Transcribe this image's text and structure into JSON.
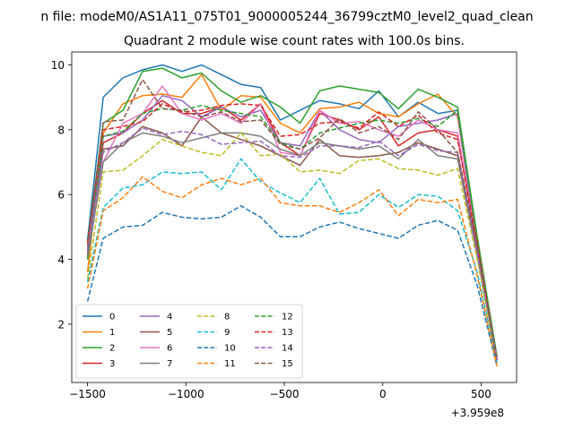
{
  "figure_title": "n file: modeM0/AS1A11_075T01_9000005244_36799cztM0_level2_quad_clean",
  "chart_data": {
    "type": "line",
    "title": "Quadrant 2 module wise count rates with 100.0s bins.",
    "xlabel": "",
    "ylabel": "",
    "x_offset_label": "+3.959e8",
    "xlim": [
      -1580,
      680
    ],
    "ylim": [
      0.2,
      10.4
    ],
    "xticks": [
      -1500,
      -1000,
      -500,
      0,
      500
    ],
    "xtick_labels": [
      "−1500",
      "−1000",
      "−500",
      "0",
      "500"
    ],
    "yticks": [
      2,
      4,
      6,
      8,
      10
    ],
    "ytick_labels": [
      "2",
      "4",
      "6",
      "8",
      "10"
    ],
    "grid": false,
    "legend": {
      "placement": "lower-left",
      "columns": 4
    },
    "x": [
      -1500,
      -1420,
      -1320,
      -1220,
      -1120,
      -1020,
      -920,
      -820,
      -720,
      -620,
      -520,
      -420,
      -320,
      -220,
      -120,
      -20,
      80,
      180,
      280,
      380,
      480,
      580
    ],
    "series": [
      {
        "name": "0",
        "color": "#1f77b4",
        "dash": "solid",
        "values": [
          4.6,
          9.0,
          9.6,
          9.85,
          10.0,
          9.8,
          10.0,
          9.7,
          9.4,
          9.3,
          8.3,
          8.6,
          8.9,
          8.8,
          8.65,
          9.2,
          8.4,
          8.85,
          8.5,
          8.6,
          4.6,
          1.0
        ]
      },
      {
        "name": "1",
        "color": "#ff7f0e",
        "dash": "solid",
        "values": [
          3.6,
          7.9,
          8.8,
          9.05,
          9.1,
          9.0,
          9.7,
          8.6,
          9.05,
          9.0,
          8.2,
          7.9,
          8.65,
          8.7,
          8.85,
          8.5,
          8.4,
          8.8,
          9.1,
          8.4,
          4.5,
          0.8
        ]
      },
      {
        "name": "2",
        "color": "#2ca02c",
        "dash": "solid",
        "values": [
          4.5,
          8.2,
          8.6,
          9.8,
          9.9,
          9.6,
          9.75,
          9.2,
          8.85,
          9.05,
          8.7,
          8.2,
          9.2,
          9.35,
          9.25,
          9.15,
          8.65,
          9.25,
          9.0,
          8.7,
          4.7,
          1.0
        ]
      },
      {
        "name": "3",
        "color": "#d62728",
        "dash": "solid",
        "values": [
          4.2,
          7.6,
          7.9,
          8.5,
          8.9,
          8.5,
          8.5,
          8.7,
          8.3,
          8.8,
          7.6,
          7.2,
          8.5,
          8.3,
          8.0,
          8.4,
          7.5,
          7.9,
          8.0,
          7.8,
          4.4,
          0.9
        ]
      },
      {
        "name": "4",
        "color": "#9467bd",
        "dash": "solid",
        "values": [
          4.3,
          7.8,
          7.9,
          8.3,
          9.05,
          8.9,
          8.4,
          8.7,
          8.4,
          8.6,
          7.6,
          7.5,
          8.6,
          8.0,
          7.7,
          7.6,
          8.1,
          8.2,
          8.3,
          8.5,
          4.4,
          0.9
        ]
      },
      {
        "name": "5",
        "color": "#8c564b",
        "dash": "solid",
        "values": [
          4.1,
          7.4,
          7.5,
          8.1,
          7.9,
          7.5,
          8.4,
          7.9,
          7.7,
          7.5,
          7.2,
          6.9,
          7.7,
          7.2,
          7.15,
          7.2,
          7.3,
          7.6,
          7.4,
          7.2,
          4.3,
          0.9
        ]
      },
      {
        "name": "6",
        "color": "#e377c2",
        "dash": "solid",
        "values": [
          4.4,
          7.0,
          8.2,
          8.5,
          9.35,
          8.5,
          8.3,
          8.5,
          8.2,
          8.8,
          7.3,
          7.2,
          8.6,
          8.2,
          8.25,
          8.0,
          7.8,
          8.3,
          8.0,
          7.9,
          4.5,
          0.9
        ]
      },
      {
        "name": "7",
        "color": "#7f7f7f",
        "dash": "solid",
        "values": [
          4.0,
          7.0,
          7.6,
          7.9,
          7.8,
          7.6,
          7.75,
          7.9,
          7.9,
          7.8,
          7.4,
          7.2,
          7.6,
          7.5,
          7.4,
          7.5,
          7.1,
          7.7,
          7.2,
          7.1,
          4.1,
          0.9
        ]
      },
      {
        "name": "8",
        "color": "#bcbd22",
        "dash": "dashed",
        "values": [
          3.4,
          6.7,
          6.75,
          7.2,
          7.7,
          7.5,
          7.3,
          7.2,
          7.9,
          7.2,
          7.25,
          6.7,
          6.75,
          6.65,
          7.05,
          7.1,
          6.8,
          6.75,
          6.6,
          6.8,
          4.0,
          0.8
        ]
      },
      {
        "name": "9",
        "color": "#17becf",
        "dash": "dashed",
        "values": [
          3.3,
          5.6,
          6.2,
          6.3,
          6.7,
          6.65,
          6.7,
          6.15,
          7.1,
          6.4,
          6.05,
          5.75,
          6.5,
          5.4,
          5.45,
          6.0,
          5.6,
          6.0,
          5.95,
          5.5,
          3.6,
          0.8
        ]
      },
      {
        "name": "10",
        "color": "#1f77b4",
        "dash": "dashed",
        "values": [
          2.7,
          4.65,
          5.0,
          5.05,
          5.45,
          5.3,
          5.25,
          5.3,
          5.65,
          5.3,
          4.7,
          4.7,
          5.0,
          5.15,
          4.95,
          4.8,
          4.65,
          5.05,
          5.2,
          4.9,
          3.2,
          0.7
        ]
      },
      {
        "name": "11",
        "color": "#ff7f0e",
        "dash": "dashed",
        "values": [
          3.1,
          5.5,
          5.9,
          6.55,
          6.1,
          5.9,
          6.3,
          6.5,
          6.3,
          6.5,
          5.75,
          5.65,
          5.65,
          5.45,
          5.75,
          6.15,
          5.35,
          5.85,
          5.75,
          5.85,
          3.5,
          0.7
        ]
      },
      {
        "name": "12",
        "color": "#2ca02c",
        "dash": "dashed",
        "values": [
          4.0,
          7.8,
          7.95,
          8.5,
          8.65,
          8.6,
          8.75,
          8.6,
          8.5,
          8.4,
          7.6,
          7.4,
          7.9,
          8.05,
          8.2,
          8.3,
          8.2,
          8.35,
          8.1,
          8.6,
          4.6,
          0.9
        ]
      },
      {
        "name": "13",
        "color": "#d62728",
        "dash": "dashed",
        "values": [
          4.5,
          8.0,
          8.1,
          8.25,
          8.8,
          8.55,
          8.6,
          8.75,
          8.8,
          8.75,
          7.8,
          7.85,
          8.2,
          8.25,
          8.05,
          8.55,
          8.1,
          8.45,
          7.9,
          7.7,
          4.5,
          0.9
        ]
      },
      {
        "name": "14",
        "color": "#9467bd",
        "dash": "dashed",
        "values": [
          4.2,
          7.3,
          7.6,
          8.05,
          7.85,
          7.95,
          7.85,
          7.55,
          7.6,
          7.65,
          7.2,
          7.15,
          7.5,
          7.5,
          7.45,
          7.65,
          7.2,
          7.55,
          7.35,
          7.3,
          4.2,
          0.9
        ]
      },
      {
        "name": "15",
        "color": "#8c564b",
        "dash": "dashed",
        "values": [
          4.4,
          8.25,
          8.3,
          9.55,
          8.65,
          8.6,
          8.4,
          8.55,
          8.25,
          8.3,
          7.55,
          7.4,
          7.75,
          8.35,
          7.9,
          8.1,
          7.7,
          8.55,
          8.0,
          7.3,
          4.4,
          0.9
        ]
      }
    ]
  }
}
